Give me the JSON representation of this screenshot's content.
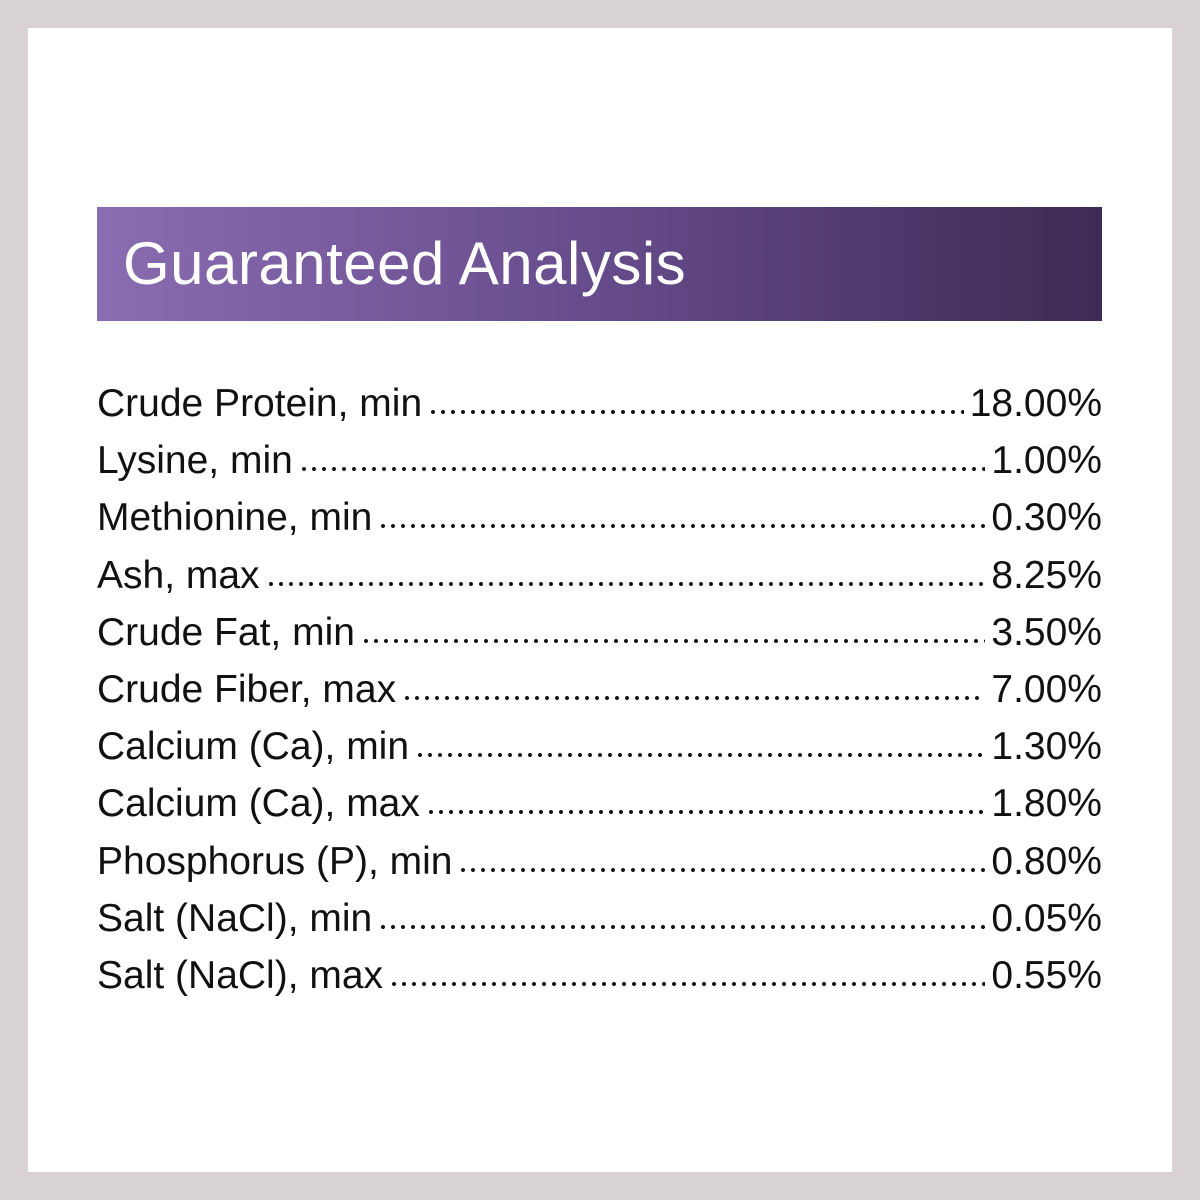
{
  "header": {
    "title": "Guaranteed Analysis"
  },
  "table": {
    "rows": [
      [
        "Crude Protein, min",
        "18.00%"
      ],
      [
        "Lysine, min",
        "1.00%"
      ],
      [
        "Methionine, min",
        "0.30%"
      ],
      [
        "Ash, max",
        "8.25%"
      ],
      [
        "Crude Fat, min",
        "3.50%"
      ],
      [
        "Crude Fiber, max",
        "7.00%"
      ],
      [
        "Calcium (Ca), min",
        "1.30%"
      ],
      [
        "Calcium (Ca), max",
        "1.80%"
      ],
      [
        "Phosphorus (P), min",
        "0.80%"
      ],
      [
        "Salt (NaCl), min",
        "0.05%"
      ],
      [
        "Salt (NaCl), max",
        "0.55%"
      ]
    ]
  }
}
